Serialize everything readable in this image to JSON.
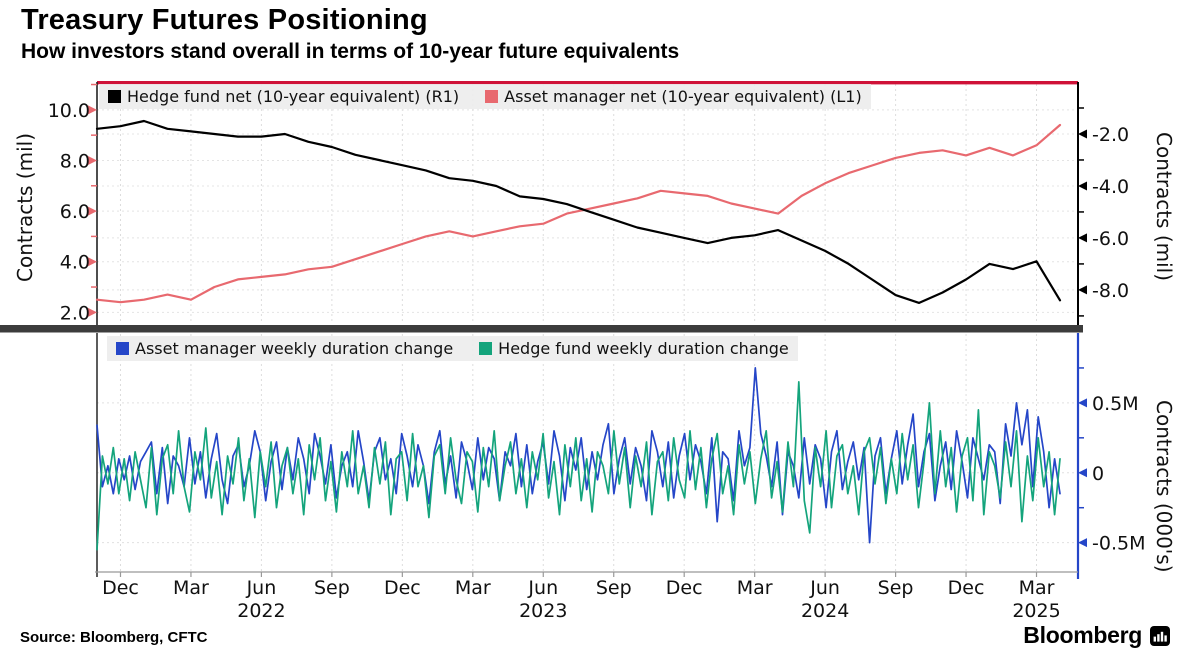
{
  "header": {
    "title": "Treasury Futures Positioning",
    "subtitle": "How investors stand overall in terms of 10-year future equivalents"
  },
  "footer": {
    "source": "Source: Bloomberg, CFTC",
    "brand": "Bloomberg",
    "brand_icon": "bar-chart-logo-icon"
  },
  "colors": {
    "hedge_fund": "#000000",
    "asset_manager": "#e8696f",
    "am_weekly": "#2546c8",
    "hf_weekly": "#14a47c",
    "top_border": "#cf1238",
    "legend_bg": "#ececec",
    "grid": "#dddddd",
    "separator": "#3c3c3c",
    "axis_gray": "#999999",
    "text": "#111111"
  },
  "x_axis": {
    "months": [
      "Dec",
      "Mar",
      "Jun",
      "Sep",
      "Dec",
      "Mar",
      "Jun",
      "Sep",
      "Dec",
      "Mar",
      "Jun",
      "Sep",
      "Dec",
      "Mar"
    ],
    "years": [
      "2022",
      "2023",
      "2024",
      "2025"
    ]
  },
  "chart_data": [
    {
      "type": "line",
      "panel": "top",
      "interval": "monthly",
      "x_start": "Nov 2021",
      "x_end": "Apr 2025",
      "left_axis": {
        "label": "Contracts (mil)",
        "ticks": [
          2.0,
          4.0,
          6.0,
          8.0,
          10.0
        ],
        "tick_labels": [
          "2.0",
          "4.0",
          "6.0",
          "8.0",
          "10.0"
        ],
        "range": [
          1.5,
          11.1
        ]
      },
      "right_axis": {
        "label": "Contracts (mil)",
        "ticks": [
          -8.0,
          -6.0,
          -4.0,
          -2.0
        ],
        "tick_labels": [
          "-8.0",
          "-6.0",
          "-4.0",
          "-2.0"
        ],
        "range": [
          -9.35,
          0
        ]
      },
      "grid": true,
      "series": [
        {
          "name": "Hedge fund net (10-year equivalent) (R1)",
          "axis": "R1",
          "color_key": "hedge_fund",
          "values": [
            -1.8,
            -1.7,
            -1.5,
            -1.8,
            -1.9,
            -2.0,
            -2.1,
            -2.1,
            -2.0,
            -2.3,
            -2.5,
            -2.8,
            -3.0,
            -3.2,
            -3.4,
            -3.7,
            -3.8,
            -4.0,
            -4.4,
            -4.5,
            -4.7,
            -5.0,
            -5.3,
            -5.6,
            -5.8,
            -6.0,
            -6.2,
            -6.0,
            -5.9,
            -5.7,
            -6.1,
            -6.5,
            -7.0,
            -7.6,
            -8.2,
            -8.5,
            -8.1,
            -7.6,
            -7.0,
            -7.2,
            -6.9,
            -8.4
          ]
        },
        {
          "name": "Asset manager net (10-year equivalent) (L1)",
          "axis": "L1",
          "color_key": "asset_manager",
          "values": [
            2.5,
            2.4,
            2.5,
            2.7,
            2.5,
            3.0,
            3.3,
            3.4,
            3.5,
            3.7,
            3.8,
            4.1,
            4.4,
            4.7,
            5.0,
            5.2,
            5.0,
            5.2,
            5.4,
            5.5,
            5.9,
            6.1,
            6.3,
            6.5,
            6.8,
            6.7,
            6.6,
            6.3,
            6.1,
            5.9,
            6.6,
            7.1,
            7.5,
            7.8,
            8.1,
            8.3,
            8.4,
            8.2,
            8.5,
            8.2,
            8.6,
            9.4
          ]
        }
      ]
    },
    {
      "type": "line",
      "panel": "bottom",
      "interval": "weekly",
      "x_start": "Nov 2021",
      "x_end": "Apr 2025",
      "right_axis": {
        "label": "Contracts (000's)",
        "ticks": [
          -0.5,
          0,
          0.5
        ],
        "tick_labels": [
          "-0.5M",
          "0",
          "0.5M"
        ],
        "range": [
          -0.71,
          1.0
        ]
      },
      "grid": true,
      "series": [
        {
          "name": "Asset manager weekly duration change",
          "axis": "R",
          "color_key": "am_weekly",
          "values": [
            0.34,
            -0.1,
            0.05,
            -0.15,
            0.1,
            -0.05,
            0.12,
            -0.12,
            0.08,
            0.15,
            0.22,
            -0.15,
            0.18,
            -0.22,
            0.12,
            0.05,
            -0.1,
            0.25,
            -0.08,
            0.15,
            -0.18,
            0.1,
            0.28,
            -0.05,
            -0.22,
            0.12,
            0.2,
            -0.1,
            0.05,
            0.3,
            0.15,
            -0.2,
            0.08,
            0.22,
            -0.12,
            0.18,
            -0.05,
            0.25,
            0.1,
            -0.15,
            0.28,
            0.12,
            -0.08,
            0.2,
            -0.18,
            0.05,
            0.15,
            -0.1,
            0.3,
            0.08,
            -0.2,
            0.15,
            0.25,
            -0.05,
            0.1,
            -0.15,
            0.28,
            0.12,
            -0.1,
            0.2,
            0.05,
            -0.22,
            0.15,
            0.3,
            -0.08,
            0.12,
            -0.18,
            0.22,
            0.08,
            -0.12,
            0.25,
            -0.05,
            0.18,
            0.1,
            -0.2,
            0.15,
            0.05,
            0.28,
            -0.1,
            0.2,
            -0.15,
            0.08,
            0.22,
            -0.08,
            0.3,
            0.12,
            -0.2,
            0.18,
            0.02,
            0.25,
            -0.12,
            0.15,
            -0.05,
            0.2,
            0.35,
            -0.15,
            0.1,
            0.25,
            -0.08,
            0.18,
            0.05,
            -0.2,
            0.3,
            0.15,
            -0.1,
            0.22,
            -0.18,
            0.12,
            0.28,
            -0.05,
            0.2,
            0.08,
            -0.15,
            0.25,
            -0.35,
            0.15,
            0.1,
            -0.2,
            0.3,
            0.05,
            0.18,
            0.75,
            0.28,
            0.12,
            -0.1,
            0.22,
            -0.3,
            0.15,
            0.05,
            -0.18,
            0.25,
            -0.08,
            0.2,
            0.1,
            -0.25,
            0.15,
            0.3,
            -0.12,
            0.08,
            0.22,
            -0.05,
            0.18,
            -0.5,
            0.12,
            0.25,
            -0.15,
            0.1,
            0.3,
            -0.08,
            0.2,
            0.42,
            -0.1,
            0.15,
            0.28,
            -0.2,
            0.05,
            0.22,
            -0.12,
            0.3,
            0.08,
            -0.18,
            0.25,
            0.1,
            -0.05,
            0.2,
            0.15,
            -0.22,
            0.35,
            0.12,
            0.5,
            0.2,
            0.45,
            -0.1,
            0.4,
            0.15,
            -0.25,
            0.1,
            -0.15
          ]
        },
        {
          "name": "Hedge fund weekly duration change",
          "axis": "R",
          "color_key": "hf_weekly",
          "values": [
            -0.55,
            0.12,
            -0.08,
            0.18,
            -0.15,
            0.1,
            -0.2,
            0.15,
            -0.05,
            -0.25,
            0.18,
            -0.3,
            0.1,
            0.2,
            -0.15,
            0.3,
            -0.1,
            -0.28,
            0.15,
            -0.05,
            0.32,
            -0.18,
            0.08,
            -0.3,
            0.12,
            -0.08,
            0.25,
            -0.2,
            0.1,
            -0.32,
            0.15,
            -0.1,
            0.22,
            -0.25,
            0.05,
            0.18,
            -0.15,
            0.1,
            -0.3,
            0.2,
            -0.05,
            0.25,
            -0.2,
            0.08,
            -0.28,
            0.15,
            -0.1,
            0.3,
            -0.15,
            0.05,
            -0.25,
            0.18,
            -0.08,
            0.22,
            -0.3,
            0.1,
            0.15,
            -0.2,
            0.28,
            -0.1,
            0.05,
            -0.32,
            0.12,
            0.2,
            -0.15,
            0.25,
            -0.05,
            -0.22,
            0.15,
            0.08,
            -0.28,
            0.18,
            -0.1,
            0.3,
            -0.2,
            0.05,
            0.22,
            -0.15,
            0.1,
            -0.25,
            0.15,
            -0.05,
            0.28,
            -0.18,
            0.08,
            -0.3,
            0.2,
            -0.1,
            0.25,
            -0.2,
            0.1,
            -0.28,
            0.15,
            0.05,
            -0.15,
            0.3,
            -0.08,
            0.18,
            -0.25,
            0.12,
            -0.1,
            0.22,
            -0.3,
            0.08,
            0.15,
            -0.2,
            0.25,
            -0.05,
            -0.18,
            0.3,
            -0.12,
            0.18,
            -0.25,
            0.1,
            0.28,
            -0.15,
            0.05,
            -0.3,
            0.2,
            -0.08,
            0.15,
            -0.22,
            0.1,
            0.3,
            -0.18,
            0.08,
            -0.28,
            0.22,
            -0.1,
            0.65,
            -0.2,
            -0.43,
            0.18,
            -0.1,
            0.3,
            -0.25,
            0.12,
            0.2,
            -0.15,
            0.05,
            -0.3,
            0.15,
            0.25,
            -0.08,
            0.18,
            -0.22,
            0.1,
            -0.15,
            0.28,
            -0.05,
            0.2,
            -0.25,
            0.08,
            0.5,
            -0.15,
            0.3,
            -0.1,
            0.18,
            -0.28,
            0.12,
            0.25,
            -0.2,
            0.45,
            -0.3,
            0.15,
            0.05,
            -0.18,
            0.22,
            -0.1,
            0.3,
            -0.35,
            0.12,
            -0.2,
            0.25,
            -0.1,
            0.15,
            -0.3,
            0.1
          ]
        }
      ]
    }
  ]
}
